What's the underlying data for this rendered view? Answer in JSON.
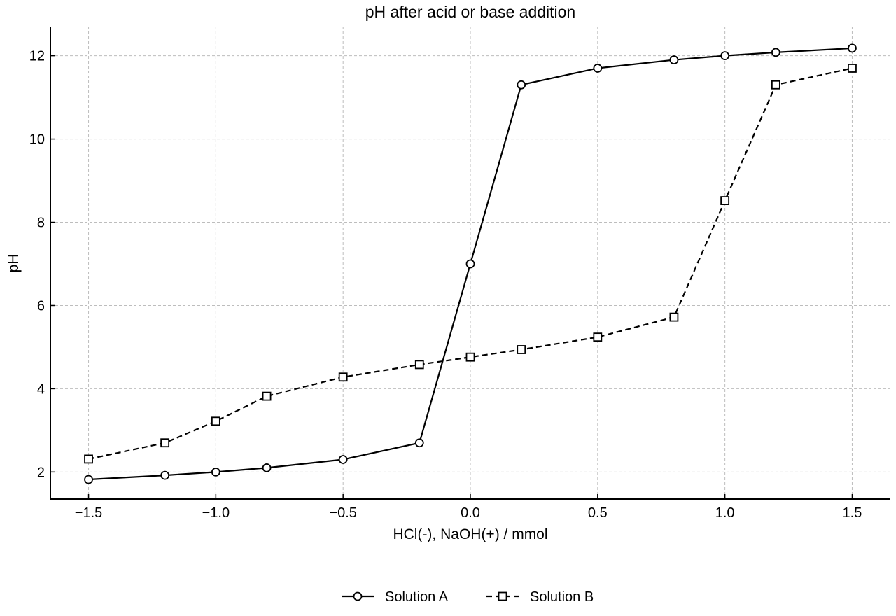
{
  "chart_data": {
    "type": "line",
    "title": "pH after acid or base addition",
    "xlabel": "HCl(-), NaOH(+) / mmol",
    "ylabel": "pH",
    "xlim": [
      -1.65,
      1.65
    ],
    "ylim": [
      1.35,
      12.7
    ],
    "xticks": [
      -1.5,
      -1.0,
      -0.5,
      0.0,
      0.5,
      1.0,
      1.5
    ],
    "xtick_labels": [
      "−1.5",
      "−1.0",
      "−0.5",
      "0.0",
      "0.5",
      "1.0",
      "1.5"
    ],
    "yticks": [
      2,
      4,
      6,
      8,
      10,
      12
    ],
    "ytick_labels": [
      "2",
      "4",
      "6",
      "8",
      "10",
      "12"
    ],
    "grid": true,
    "legend_position": "bottom-center",
    "series": [
      {
        "name": "Solution A",
        "marker": "circle",
        "line_style": "solid",
        "color": "#000000",
        "x": [
          -1.5,
          -1.2,
          -1.0,
          -0.8,
          -0.5,
          -0.2,
          0.0,
          0.2,
          0.5,
          0.8,
          1.0,
          1.2,
          1.5
        ],
        "y": [
          1.82,
          1.92,
          2.0,
          2.1,
          2.3,
          2.7,
          7.0,
          11.3,
          11.7,
          11.9,
          12.0,
          12.08,
          12.18
        ]
      },
      {
        "name": "Solution B",
        "marker": "square",
        "line_style": "dashed",
        "color": "#000000",
        "x": [
          -1.5,
          -1.2,
          -1.0,
          -0.8,
          -0.5,
          -0.2,
          0.0,
          0.2,
          0.5,
          0.8,
          1.0,
          1.2,
          1.5
        ],
        "y": [
          2.31,
          2.7,
          3.22,
          3.82,
          4.28,
          4.58,
          4.76,
          4.94,
          5.24,
          5.72,
          8.52,
          11.3,
          11.7
        ]
      }
    ]
  }
}
